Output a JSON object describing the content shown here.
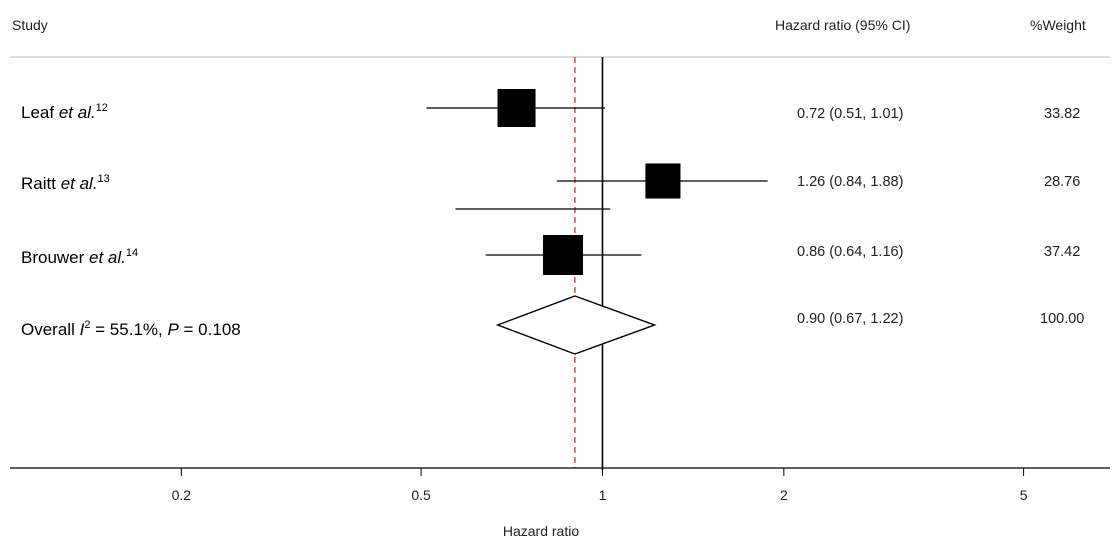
{
  "chart_data": {
    "type": "forest",
    "headers": {
      "study": "Study",
      "effect": "Hazard ratio (95% CI)",
      "weight": "%Weight"
    },
    "xlabel": "Hazard ratio",
    "xscale": "log",
    "xlim": [
      0.1,
      7.2
    ],
    "xticks": [
      0.2,
      0.5,
      1,
      2,
      5
    ],
    "xtick_labels": [
      "0.2",
      "0.5",
      "1",
      "2",
      "5"
    ],
    "null_line": 1,
    "overall_line": 0.9,
    "studies": [
      {
        "name": "Leaf ",
        "etal": "et al.",
        "ref": "12",
        "hr": 0.72,
        "lower": 0.51,
        "upper": 1.01,
        "ci_text": "0.72 (0.51, 1.01)",
        "weight": 33.82,
        "weight_text": "33.82"
      },
      {
        "name": "Raitt ",
        "etal": "et al.",
        "ref": "13",
        "hr": 1.26,
        "lower": 0.84,
        "upper": 1.88,
        "ci_text": "1.26 (0.84, 1.88)",
        "weight": 28.76,
        "weight_text": "28.76"
      },
      {
        "name": "Brouwer ",
        "etal": "et al.",
        "ref": "14",
        "hr": 0.86,
        "lower": 0.64,
        "upper": 1.16,
        "ci_text": "0.86 (0.64, 1.16)",
        "weight": 37.42,
        "weight_text": "37.42"
      }
    ],
    "stray_segment": {
      "lower": 0.57,
      "upper": 1.03
    },
    "overall": {
      "label_prefix": "Overall ",
      "i_letter": "I",
      "i_sup": "2",
      "i_value": " = 55.1%, ",
      "p_letter": "P",
      "p_value": " = 0.108",
      "hr": 0.9,
      "lower": 0.67,
      "upper": 1.22,
      "ci_text": "0.90 (0.67, 1.22)",
      "weight_text": "100.00"
    }
  }
}
